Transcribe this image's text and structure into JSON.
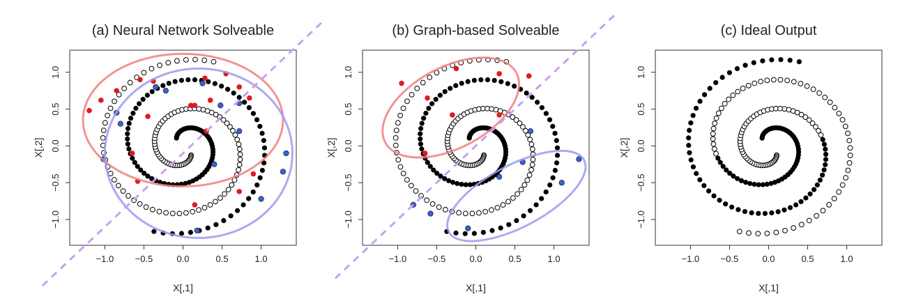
{
  "colors": {
    "filled": "#000000",
    "open_stroke": "#000000",
    "red_point": "#e01b1b",
    "blue_point": "#3a5fd6",
    "red_ellipse": "#f08080",
    "blue_ellipse": "#9b9bf0",
    "separator": "#c9a0f0"
  },
  "chart_data": [
    {
      "type": "scatter",
      "title": "(a) Neural Network Solveable",
      "xlabel": "X[,1]",
      "ylabel": "X[,2]",
      "xlim": [
        -1.45,
        1.45
      ],
      "ylim": [
        -1.35,
        1.3
      ],
      "xticks": [
        -1.0,
        -0.5,
        0.0,
        0.5,
        1.0
      ],
      "yticks": [
        -1.0,
        -0.5,
        0.0,
        0.5,
        1.0
      ],
      "xtick_labels": [
        "−1.0",
        "−0.5",
        "0.0",
        "0.5",
        "1.0"
      ],
      "ytick_labels": [
        "−1.0",
        "−0.5",
        "0.0",
        "0.5",
        "1.0"
      ],
      "series": [
        {
          "marker": "filled",
          "spiral": "A"
        },
        {
          "marker": "open",
          "spiral": "B"
        }
      ],
      "highlighted_red": [
        [
          -1.2,
          0.48
        ],
        [
          -1.05,
          0.62
        ],
        [
          -0.85,
          0.75
        ],
        [
          -0.55,
          0.9
        ],
        [
          -0.38,
          0.88
        ],
        [
          0.28,
          0.92
        ],
        [
          0.55,
          0.98
        ],
        [
          0.72,
          0.8
        ],
        [
          0.85,
          0.65
        ],
        [
          -0.65,
          -0.1
        ],
        [
          -0.58,
          -0.48
        ],
        [
          0.15,
          0.55
        ],
        [
          0.35,
          0.62
        ],
        [
          0.3,
          0.2
        ],
        [
          0.1,
          0.55
        ],
        [
          -0.45,
          0.4
        ],
        [
          0.72,
          -0.62
        ],
        [
          0.9,
          -0.38
        ],
        [
          0.15,
          -0.8
        ]
      ],
      "highlighted_blue": [
        [
          -0.85,
          0.45
        ],
        [
          -0.8,
          0.3
        ],
        [
          -0.35,
          0.8
        ],
        [
          -0.22,
          0.75
        ],
        [
          0.25,
          0.85
        ],
        [
          0.48,
          0.55
        ],
        [
          0.72,
          0.58
        ],
        [
          0.72,
          0.2
        ],
        [
          -1.02,
          -0.18
        ],
        [
          0.18,
          -1.15
        ],
        [
          0.4,
          -0.25
        ],
        [
          1.0,
          -0.72
        ],
        [
          1.28,
          -0.35
        ],
        [
          1.32,
          -0.1
        ]
      ],
      "ellipses": [
        {
          "color": "red",
          "cx": 0.0,
          "cy": 0.35,
          "rx": 1.28,
          "ry": 0.9,
          "angle": 0
        },
        {
          "color": "blue",
          "cx": 0.2,
          "cy": -0.1,
          "rx": 1.2,
          "ry": 1.15,
          "angle": 0
        }
      ],
      "separator": {
        "slope": 1.0,
        "intercept": -0.1
      }
    },
    {
      "type": "scatter",
      "title": "(b) Graph-based Solveable",
      "xlabel": "X[,1]",
      "ylabel": "X[,2]",
      "xlim": [
        -1.45,
        1.45
      ],
      "ylim": [
        -1.35,
        1.3
      ],
      "xticks": [
        -1.0,
        -0.5,
        0.0,
        0.5,
        1.0
      ],
      "yticks": [
        -1.0,
        -0.5,
        0.0,
        0.5,
        1.0
      ],
      "xtick_labels": [
        "−1.0",
        "−0.5",
        "0.0",
        "0.5",
        "1.0"
      ],
      "ytick_labels": [
        "−1.0",
        "−0.5",
        "0.0",
        "0.5",
        "1.0"
      ],
      "series": [
        {
          "marker": "filled",
          "spiral": "A"
        },
        {
          "marker": "open",
          "spiral": "B"
        }
      ],
      "highlighted_red": [
        [
          -0.95,
          0.85
        ],
        [
          -0.25,
          1.05
        ],
        [
          0.3,
          0.98
        ],
        [
          0.68,
          0.95
        ],
        [
          -0.62,
          0.65
        ],
        [
          -0.3,
          0.42
        ],
        [
          0.3,
          0.42
        ],
        [
          -0.65,
          -0.1
        ]
      ],
      "highlighted_blue": [
        [
          0.7,
          0.2
        ],
        [
          0.3,
          -0.42
        ],
        [
          0.6,
          -0.22
        ],
        [
          -0.8,
          -0.8
        ],
        [
          -0.58,
          -0.92
        ],
        [
          -0.1,
          -1.12
        ],
        [
          1.1,
          -0.5
        ],
        [
          1.32,
          -0.18
        ]
      ],
      "ellipses": [
        {
          "color": "red",
          "cx": -0.32,
          "cy": 0.52,
          "rx": 0.95,
          "ry": 0.55,
          "angle": 28
        },
        {
          "color": "blue",
          "cx": 0.52,
          "cy": -0.68,
          "rx": 0.98,
          "ry": 0.42,
          "angle": 28
        }
      ],
      "separator": {
        "slope": 1.0,
        "intercept": 0.0
      }
    },
    {
      "type": "scatter",
      "title": "(c) Ideal Output",
      "xlabel": "X[,1]",
      "ylabel": "X[,2]",
      "xlim": [
        -1.45,
        1.45
      ],
      "ylim": [
        -1.35,
        1.3
      ],
      "xticks": [
        -1.0,
        -0.5,
        0.0,
        0.5,
        1.0
      ],
      "yticks": [
        -1.0,
        -0.5,
        0.0,
        0.5,
        1.0
      ],
      "xtick_labels": [
        "−1.0",
        "−0.5",
        "0.0",
        "0.5",
        "1.0"
      ],
      "ytick_labels": [
        "−1.0",
        "−0.5",
        "0.0",
        "0.5",
        "1.0"
      ],
      "series": [
        {
          "marker": "filled",
          "spiral": "A_ideal"
        },
        {
          "marker": "open",
          "spiral": "B_ideal"
        }
      ],
      "highlighted_red": [],
      "highlighted_blue": [],
      "ellipses": [],
      "separator": null
    }
  ]
}
